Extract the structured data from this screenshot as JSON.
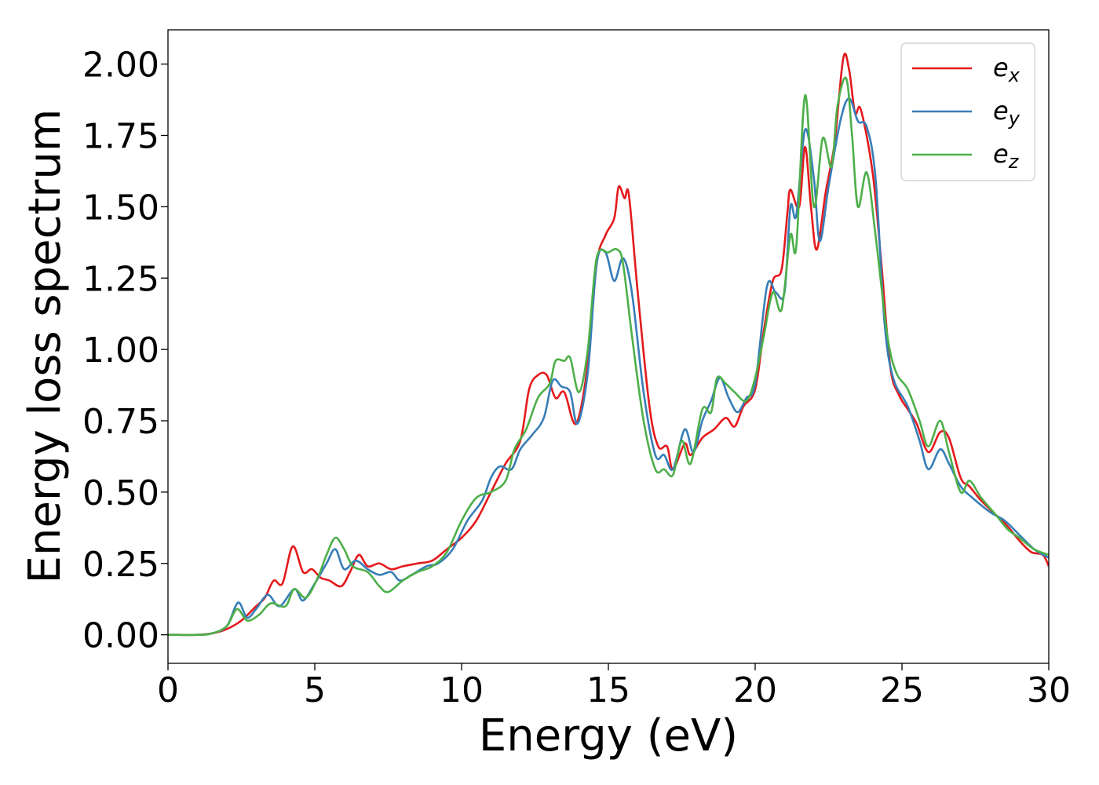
{
  "chart_data": {
    "type": "line",
    "title": "",
    "xlabel": "Energy (eV)",
    "ylabel": "Energy loss spectrum",
    "xlim": [
      0,
      30
    ],
    "ylim": [
      -0.1,
      2.12
    ],
    "xticks": [
      0,
      5,
      10,
      15,
      20,
      25,
      30
    ],
    "xtick_labels": [
      "0",
      "5",
      "10",
      "15",
      "20",
      "25",
      "30"
    ],
    "yticks": [
      0.0,
      0.25,
      0.5,
      0.75,
      1.0,
      1.25,
      1.5,
      1.75,
      2.0
    ],
    "ytick_labels": [
      "0.00",
      "0.25",
      "0.50",
      "0.75",
      "1.00",
      "1.25",
      "1.50",
      "1.75",
      "2.00"
    ],
    "grid": false,
    "legend_position": "top-right",
    "series": [
      {
        "name": "e",
        "subscript": "x",
        "color": "#e41a1c",
        "points": [
          [
            0,
            0
          ],
          [
            1,
            0.0
          ],
          [
            1.5,
            0.005
          ],
          [
            2,
            0.02
          ],
          [
            2.5,
            0.05
          ],
          [
            3,
            0.1
          ],
          [
            3.3,
            0.13
          ],
          [
            3.6,
            0.19
          ],
          [
            3.9,
            0.18
          ],
          [
            4.25,
            0.31
          ],
          [
            4.6,
            0.22
          ],
          [
            4.9,
            0.23
          ],
          [
            5.2,
            0.2
          ],
          [
            5.5,
            0.19
          ],
          [
            5.9,
            0.17
          ],
          [
            6.2,
            0.22
          ],
          [
            6.5,
            0.28
          ],
          [
            6.8,
            0.24
          ],
          [
            7.2,
            0.25
          ],
          [
            7.6,
            0.23
          ],
          [
            8,
            0.24
          ],
          [
            8.5,
            0.25
          ],
          [
            9,
            0.26
          ],
          [
            9.5,
            0.3
          ],
          [
            10,
            0.34
          ],
          [
            10.5,
            0.4
          ],
          [
            11,
            0.5
          ],
          [
            11.5,
            0.6
          ],
          [
            12,
            0.68
          ],
          [
            12.3,
            0.86
          ],
          [
            12.6,
            0.91
          ],
          [
            12.9,
            0.91
          ],
          [
            13.2,
            0.83
          ],
          [
            13.5,
            0.85
          ],
          [
            13.9,
            0.74
          ],
          [
            14.3,
            0.95
          ],
          [
            14.6,
            1.3
          ],
          [
            14.9,
            1.4
          ],
          [
            15.2,
            1.46
          ],
          [
            15.35,
            1.57
          ],
          [
            15.55,
            1.53
          ],
          [
            15.7,
            1.54
          ],
          [
            16,
            1.2
          ],
          [
            16.4,
            0.8
          ],
          [
            16.7,
            0.66
          ],
          [
            17,
            0.66
          ],
          [
            17.2,
            0.58
          ],
          [
            17.6,
            0.67
          ],
          [
            17.8,
            0.63
          ],
          [
            18.2,
            0.69
          ],
          [
            18.6,
            0.72
          ],
          [
            19,
            0.76
          ],
          [
            19.3,
            0.73
          ],
          [
            19.6,
            0.8
          ],
          [
            20,
            0.86
          ],
          [
            20.3,
            1.07
          ],
          [
            20.6,
            1.24
          ],
          [
            20.9,
            1.28
          ],
          [
            21.1,
            1.48
          ],
          [
            21.2,
            1.56
          ],
          [
            21.5,
            1.5
          ],
          [
            21.7,
            1.71
          ],
          [
            21.9,
            1.5
          ],
          [
            22.1,
            1.35
          ],
          [
            22.4,
            1.55
          ],
          [
            22.7,
            1.72
          ],
          [
            23,
            2.02
          ],
          [
            23.2,
            1.98
          ],
          [
            23.4,
            1.83
          ],
          [
            23.6,
            1.84
          ],
          [
            24,
            1.62
          ],
          [
            24.3,
            1.3
          ],
          [
            24.6,
            0.94
          ],
          [
            24.9,
            0.84
          ],
          [
            25.2,
            0.79
          ],
          [
            25.5,
            0.74
          ],
          [
            25.9,
            0.64
          ],
          [
            26.3,
            0.71
          ],
          [
            26.6,
            0.69
          ],
          [
            27,
            0.55
          ],
          [
            27.3,
            0.52
          ],
          [
            27.7,
            0.47
          ],
          [
            28.2,
            0.42
          ],
          [
            28.6,
            0.38
          ],
          [
            29,
            0.33
          ],
          [
            29.4,
            0.29
          ],
          [
            29.8,
            0.28
          ],
          [
            30,
            0.24
          ]
        ]
      },
      {
        "name": "e",
        "subscript": "y",
        "color": "#377eb8",
        "points": [
          [
            0,
            0
          ],
          [
            1,
            0.0
          ],
          [
            1.5,
            0.005
          ],
          [
            2,
            0.03
          ],
          [
            2.3,
            0.1
          ],
          [
            2.45,
            0.11
          ],
          [
            2.7,
            0.06
          ],
          [
            3,
            0.09
          ],
          [
            3.4,
            0.14
          ],
          [
            3.8,
            0.1
          ],
          [
            4.3,
            0.16
          ],
          [
            4.6,
            0.12
          ],
          [
            5,
            0.18
          ],
          [
            5.4,
            0.25
          ],
          [
            5.7,
            0.3
          ],
          [
            6,
            0.23
          ],
          [
            6.4,
            0.26
          ],
          [
            6.8,
            0.23
          ],
          [
            7.2,
            0.21
          ],
          [
            7.6,
            0.22
          ],
          [
            7.9,
            0.19
          ],
          [
            8.3,
            0.21
          ],
          [
            8.8,
            0.24
          ],
          [
            9.2,
            0.25
          ],
          [
            9.7,
            0.3
          ],
          [
            10.2,
            0.4
          ],
          [
            10.7,
            0.47
          ],
          [
            11,
            0.55
          ],
          [
            11.3,
            0.59
          ],
          [
            11.7,
            0.58
          ],
          [
            12,
            0.65
          ],
          [
            12.4,
            0.7
          ],
          [
            12.8,
            0.76
          ],
          [
            13.1,
            0.89
          ],
          [
            13.4,
            0.87
          ],
          [
            13.7,
            0.85
          ],
          [
            13.95,
            0.74
          ],
          [
            14.3,
            0.92
          ],
          [
            14.6,
            1.3
          ],
          [
            14.9,
            1.34
          ],
          [
            15.2,
            1.24
          ],
          [
            15.5,
            1.32
          ],
          [
            15.8,
            1.2
          ],
          [
            16.2,
            0.85
          ],
          [
            16.6,
            0.63
          ],
          [
            16.9,
            0.63
          ],
          [
            17.2,
            0.58
          ],
          [
            17.6,
            0.72
          ],
          [
            17.9,
            0.64
          ],
          [
            18.2,
            0.75
          ],
          [
            18.5,
            0.82
          ],
          [
            18.8,
            0.9
          ],
          [
            19.1,
            0.83
          ],
          [
            19.4,
            0.78
          ],
          [
            19.7,
            0.83
          ],
          [
            20,
            0.88
          ],
          [
            20.4,
            1.22
          ],
          [
            20.7,
            1.2
          ],
          [
            21,
            1.2
          ],
          [
            21.2,
            1.5
          ],
          [
            21.4,
            1.47
          ],
          [
            21.7,
            1.77
          ],
          [
            22,
            1.6
          ],
          [
            22.2,
            1.38
          ],
          [
            22.5,
            1.57
          ],
          [
            22.9,
            1.8
          ],
          [
            23.2,
            1.88
          ],
          [
            23.5,
            1.8
          ],
          [
            23.8,
            1.78
          ],
          [
            24.1,
            1.6
          ],
          [
            24.4,
            1.1
          ],
          [
            24.7,
            0.9
          ],
          [
            25.2,
            0.8
          ],
          [
            25.6,
            0.68
          ],
          [
            25.9,
            0.58
          ],
          [
            26.3,
            0.65
          ],
          [
            26.6,
            0.6
          ],
          [
            27,
            0.52
          ],
          [
            27.4,
            0.48
          ],
          [
            28,
            0.43
          ],
          [
            28.5,
            0.4
          ],
          [
            29,
            0.35
          ],
          [
            29.5,
            0.3
          ],
          [
            30,
            0.27
          ]
        ]
      },
      {
        "name": "e",
        "subscript": "z",
        "color": "#4daf4a",
        "points": [
          [
            0,
            0
          ],
          [
            1,
            0.0
          ],
          [
            1.5,
            0.005
          ],
          [
            2,
            0.03
          ],
          [
            2.35,
            0.09
          ],
          [
            2.7,
            0.05
          ],
          [
            3.1,
            0.07
          ],
          [
            3.5,
            0.11
          ],
          [
            4,
            0.1
          ],
          [
            4.3,
            0.16
          ],
          [
            4.7,
            0.13
          ],
          [
            5.1,
            0.2
          ],
          [
            5.4,
            0.28
          ],
          [
            5.7,
            0.34
          ],
          [
            6,
            0.3
          ],
          [
            6.3,
            0.24
          ],
          [
            6.8,
            0.22
          ],
          [
            7.2,
            0.17
          ],
          [
            7.5,
            0.15
          ],
          [
            8,
            0.19
          ],
          [
            8.5,
            0.22
          ],
          [
            9,
            0.24
          ],
          [
            9.5,
            0.29
          ],
          [
            10,
            0.4
          ],
          [
            10.5,
            0.48
          ],
          [
            11,
            0.5
          ],
          [
            11.5,
            0.54
          ],
          [
            11.8,
            0.65
          ],
          [
            12.2,
            0.72
          ],
          [
            12.6,
            0.83
          ],
          [
            13,
            0.88
          ],
          [
            13.2,
            0.96
          ],
          [
            13.5,
            0.96
          ],
          [
            13.7,
            0.97
          ],
          [
            14,
            0.85
          ],
          [
            14.3,
            1.0
          ],
          [
            14.6,
            1.32
          ],
          [
            15,
            1.34
          ],
          [
            15.3,
            1.35
          ],
          [
            15.5,
            1.3
          ],
          [
            15.8,
            1.05
          ],
          [
            16.2,
            0.75
          ],
          [
            16.6,
            0.58
          ],
          [
            16.9,
            0.58
          ],
          [
            17.2,
            0.56
          ],
          [
            17.5,
            0.68
          ],
          [
            17.8,
            0.6
          ],
          [
            18.2,
            0.79
          ],
          [
            18.5,
            0.78
          ],
          [
            18.7,
            0.9
          ],
          [
            19,
            0.88
          ],
          [
            19.3,
            0.85
          ],
          [
            19.7,
            0.82
          ],
          [
            20,
            0.9
          ],
          [
            20.3,
            1.05
          ],
          [
            20.6,
            1.2
          ],
          [
            20.9,
            1.14
          ],
          [
            21.2,
            1.4
          ],
          [
            21.4,
            1.36
          ],
          [
            21.7,
            1.89
          ],
          [
            22,
            1.5
          ],
          [
            22.3,
            1.74
          ],
          [
            22.6,
            1.64
          ],
          [
            22.8,
            1.85
          ],
          [
            23.1,
            1.95
          ],
          [
            23.3,
            1.75
          ],
          [
            23.5,
            1.5
          ],
          [
            23.8,
            1.62
          ],
          [
            24.1,
            1.4
          ],
          [
            24.5,
            1.05
          ],
          [
            24.8,
            0.92
          ],
          [
            25.2,
            0.86
          ],
          [
            25.6,
            0.75
          ],
          [
            25.9,
            0.66
          ],
          [
            26.3,
            0.75
          ],
          [
            26.6,
            0.64
          ],
          [
            27,
            0.5
          ],
          [
            27.3,
            0.54
          ],
          [
            27.7,
            0.48
          ],
          [
            28.2,
            0.42
          ],
          [
            28.6,
            0.37
          ],
          [
            29,
            0.34
          ],
          [
            29.5,
            0.3
          ],
          [
            30,
            0.28
          ]
        ]
      }
    ]
  }
}
